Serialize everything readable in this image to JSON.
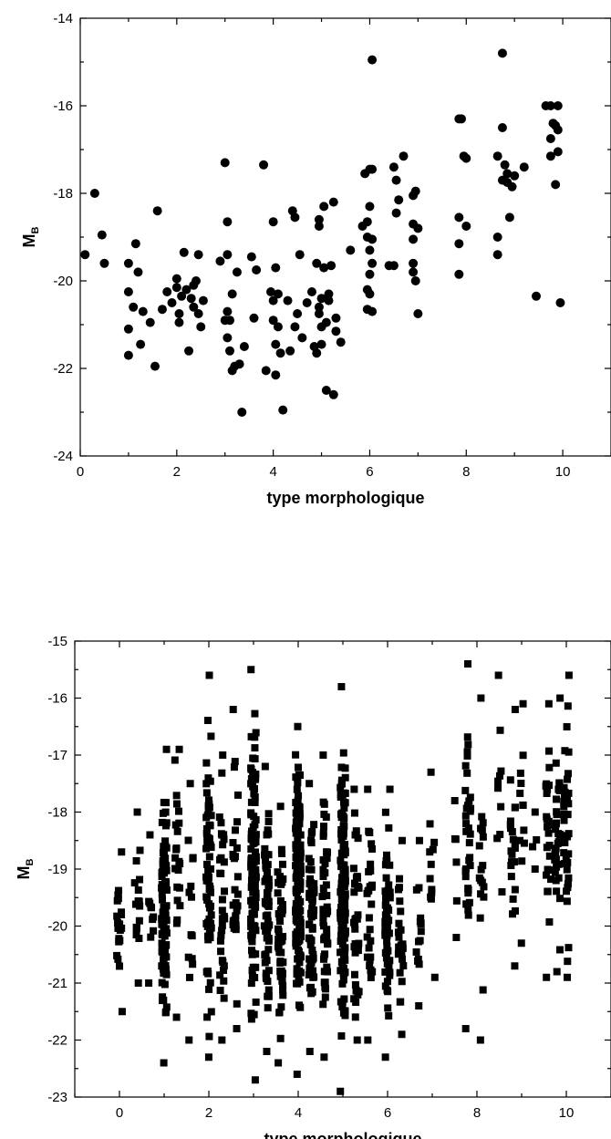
{
  "chart_data": [
    {
      "type": "scatter",
      "marker": "circle",
      "color": "#000000",
      "xlabel": "type morphologique",
      "ylabel": "M",
      "ylabel_subscript": "B",
      "xlim": [
        0,
        11
      ],
      "ylim": [
        -24,
        -14
      ],
      "xticks": [
        0,
        2,
        4,
        6,
        8,
        10
      ],
      "yticks": [
        -24,
        -22,
        -20,
        -18,
        -16,
        -14
      ],
      "grid": false,
      "points": [
        [
          0.1,
          -19.4
        ],
        [
          0.3,
          -18.0
        ],
        [
          0.45,
          -18.95
        ],
        [
          0.5,
          -19.6
        ],
        [
          1.0,
          -19.6
        ],
        [
          1.0,
          -20.25
        ],
        [
          1.0,
          -21.1
        ],
        [
          1.0,
          -21.7
        ],
        [
          1.1,
          -20.6
        ],
        [
          1.15,
          -19.15
        ],
        [
          1.2,
          -19.8
        ],
        [
          1.25,
          -21.45
        ],
        [
          1.3,
          -20.7
        ],
        [
          1.45,
          -20.95
        ],
        [
          1.55,
          -21.95
        ],
        [
          1.6,
          -18.4
        ],
        [
          1.7,
          -20.65
        ],
        [
          1.8,
          -20.25
        ],
        [
          1.9,
          -20.5
        ],
        [
          2.0,
          -19.95
        ],
        [
          2.0,
          -20.15
        ],
        [
          2.05,
          -20.75
        ],
        [
          2.05,
          -20.95
        ],
        [
          2.1,
          -20.35
        ],
        [
          2.15,
          -19.35
        ],
        [
          2.2,
          -20.2
        ],
        [
          2.25,
          -21.6
        ],
        [
          2.3,
          -20.4
        ],
        [
          2.35,
          -20.1
        ],
        [
          2.35,
          -20.6
        ],
        [
          2.4,
          -20.0
        ],
        [
          2.45,
          -19.4
        ],
        [
          2.45,
          -20.75
        ],
        [
          2.5,
          -21.05
        ],
        [
          2.55,
          -20.45
        ],
        [
          2.9,
          -19.55
        ],
        [
          3.0,
          -17.3
        ],
        [
          3.0,
          -20.9
        ],
        [
          3.05,
          -18.65
        ],
        [
          3.05,
          -19.4
        ],
        [
          3.05,
          -20.7
        ],
        [
          3.05,
          -21.3
        ],
        [
          3.1,
          -20.9
        ],
        [
          3.1,
          -21.6
        ],
        [
          3.15,
          -20.3
        ],
        [
          3.15,
          -22.05
        ],
        [
          3.2,
          -21.95
        ],
        [
          3.25,
          -19.8
        ],
        [
          3.3,
          -21.9
        ],
        [
          3.35,
          -23.0
        ],
        [
          3.4,
          -21.5
        ],
        [
          3.55,
          -19.45
        ],
        [
          3.6,
          -20.85
        ],
        [
          3.65,
          -19.75
        ],
        [
          3.8,
          -17.35
        ],
        [
          3.85,
          -22.05
        ],
        [
          3.95,
          -20.25
        ],
        [
          4.0,
          -18.65
        ],
        [
          4.0,
          -20.45
        ],
        [
          4.0,
          -20.9
        ],
        [
          4.05,
          -19.7
        ],
        [
          4.05,
          -21.45
        ],
        [
          4.05,
          -22.15
        ],
        [
          4.1,
          -20.3
        ],
        [
          4.1,
          -21.05
        ],
        [
          4.15,
          -21.65
        ],
        [
          4.2,
          -22.95
        ],
        [
          4.3,
          -20.45
        ],
        [
          4.35,
          -21.6
        ],
        [
          4.4,
          -18.4
        ],
        [
          4.45,
          -18.55
        ],
        [
          4.45,
          -21.05
        ],
        [
          4.5,
          -20.75
        ],
        [
          4.55,
          -19.4
        ],
        [
          4.6,
          -21.3
        ],
        [
          4.7,
          -20.5
        ],
        [
          4.8,
          -20.25
        ],
        [
          4.85,
          -21.5
        ],
        [
          4.9,
          -19.6
        ],
        [
          4.9,
          -21.65
        ],
        [
          4.95,
          -18.6
        ],
        [
          4.95,
          -18.75
        ],
        [
          4.95,
          -20.6
        ],
        [
          4.95,
          -20.75
        ],
        [
          5.0,
          -21.45
        ],
        [
          5.0,
          -21.05
        ],
        [
          5.0,
          -20.4
        ],
        [
          5.05,
          -18.3
        ],
        [
          5.05,
          -19.7
        ],
        [
          5.1,
          -22.5
        ],
        [
          5.1,
          -20.95
        ],
        [
          5.15,
          -20.45
        ],
        [
          5.15,
          -20.3
        ],
        [
          5.2,
          -19.65
        ],
        [
          5.25,
          -22.6
        ],
        [
          5.25,
          -18.2
        ],
        [
          5.3,
          -21.15
        ],
        [
          5.3,
          -20.85
        ],
        [
          5.4,
          -21.4
        ],
        [
          5.6,
          -19.3
        ],
        [
          5.85,
          -18.75
        ],
        [
          5.9,
          -17.55
        ],
        [
          5.95,
          -18.65
        ],
        [
          5.95,
          -19.0
        ],
        [
          5.95,
          -20.2
        ],
        [
          5.95,
          -20.65
        ],
        [
          6.0,
          -17.45
        ],
        [
          6.0,
          -18.3
        ],
        [
          6.0,
          -19.3
        ],
        [
          6.0,
          -19.85
        ],
        [
          6.0,
          -20.3
        ],
        [
          6.05,
          -14.95
        ],
        [
          6.05,
          -17.45
        ],
        [
          6.05,
          -19.05
        ],
        [
          6.05,
          -19.6
        ],
        [
          6.05,
          -20.7
        ],
        [
          6.4,
          -19.65
        ],
        [
          6.5,
          -19.65
        ],
        [
          6.5,
          -17.4
        ],
        [
          6.55,
          -17.7
        ],
        [
          6.55,
          -18.45
        ],
        [
          6.6,
          -18.15
        ],
        [
          6.7,
          -17.15
        ],
        [
          6.9,
          -18.05
        ],
        [
          6.9,
          -18.7
        ],
        [
          6.9,
          -19.05
        ],
        [
          6.9,
          -19.6
        ],
        [
          6.9,
          -19.8
        ],
        [
          6.95,
          -17.95
        ],
        [
          6.95,
          -20.0
        ],
        [
          7.0,
          -20.75
        ],
        [
          7.0,
          -18.8
        ],
        [
          7.85,
          -16.3
        ],
        [
          7.85,
          -18.55
        ],
        [
          7.85,
          -19.15
        ],
        [
          7.85,
          -19.85
        ],
        [
          7.9,
          -16.3
        ],
        [
          7.95,
          -17.15
        ],
        [
          8.0,
          -17.2
        ],
        [
          8.0,
          -18.75
        ],
        [
          8.65,
          -17.15
        ],
        [
          8.65,
          -19.0
        ],
        [
          8.65,
          -19.4
        ],
        [
          8.75,
          -14.8
        ],
        [
          8.75,
          -16.5
        ],
        [
          8.75,
          -17.7
        ],
        [
          8.8,
          -17.35
        ],
        [
          8.85,
          -17.55
        ],
        [
          8.85,
          -17.75
        ],
        [
          8.9,
          -18.55
        ],
        [
          8.95,
          -17.85
        ],
        [
          9.0,
          -17.6
        ],
        [
          9.2,
          -17.4
        ],
        [
          9.45,
          -20.35
        ],
        [
          9.65,
          -16.0
        ],
        [
          9.75,
          -16.0
        ],
        [
          9.75,
          -16.75
        ],
        [
          9.75,
          -17.15
        ],
        [
          9.8,
          -16.4
        ],
        [
          9.85,
          -16.45
        ],
        [
          9.9,
          -16.0
        ],
        [
          9.9,
          -16.55
        ],
        [
          9.9,
          -17.05
        ],
        [
          9.85,
          -17.8
        ],
        [
          9.95,
          -20.5
        ]
      ]
    },
    {
      "type": "scatter",
      "marker": "square",
      "color": "#000000",
      "xlabel": "type morphologique",
      "ylabel": "M",
      "ylabel_subscript": "B",
      "xlim": [
        -1,
        11
      ],
      "ylim": [
        -23,
        -15
      ],
      "xticks": [
        0,
        2,
        4,
        6,
        8,
        10
      ],
      "yticks": [
        -23,
        -22,
        -21,
        -20,
        -19,
        -18,
        -17,
        -16,
        -15
      ],
      "grid": false,
      "columns": [
        {
          "x": 0.0,
          "min": -21.5,
          "max": -18.7,
          "n": 22
        },
        {
          "x": 0.4,
          "min": -21.0,
          "max": -18.0,
          "n": 18
        },
        {
          "x": 0.7,
          "min": -21.0,
          "max": -18.4,
          "n": 10
        },
        {
          "x": 1.0,
          "min": -22.4,
          "max": -16.9,
          "n": 95
        },
        {
          "x": 1.3,
          "min": -21.6,
          "max": -16.9,
          "n": 22
        },
        {
          "x": 1.6,
          "min": -22.0,
          "max": -17.5,
          "n": 14
        },
        {
          "x": 2.0,
          "min": -22.3,
          "max": -15.6,
          "n": 75
        },
        {
          "x": 2.3,
          "min": -22.0,
          "max": -17.0,
          "n": 35
        },
        {
          "x": 2.6,
          "min": -21.8,
          "max": -16.2,
          "n": 30
        },
        {
          "x": 3.0,
          "min": -22.7,
          "max": -15.5,
          "n": 120
        },
        {
          "x": 3.3,
          "min": -22.2,
          "max": -17.2,
          "n": 60
        },
        {
          "x": 3.6,
          "min": -22.4,
          "max": -17.9,
          "n": 55
        },
        {
          "x": 4.0,
          "min": -22.6,
          "max": -16.5,
          "n": 150
        },
        {
          "x": 4.3,
          "min": -22.2,
          "max": -17.5,
          "n": 60
        },
        {
          "x": 4.6,
          "min": -22.3,
          "max": -17.0,
          "n": 50
        },
        {
          "x": 5.0,
          "min": -22.9,
          "max": -15.8,
          "n": 130
        },
        {
          "x": 5.3,
          "min": -22.0,
          "max": -17.6,
          "n": 40
        },
        {
          "x": 5.6,
          "min": -22.0,
          "max": -17.6,
          "n": 30
        },
        {
          "x": 6.0,
          "min": -22.3,
          "max": -17.6,
          "n": 55
        },
        {
          "x": 6.3,
          "min": -21.9,
          "max": -18.5,
          "n": 25
        },
        {
          "x": 6.7,
          "min": -21.4,
          "max": -18.5,
          "n": 15
        },
        {
          "x": 7.0,
          "min": -20.9,
          "max": -17.3,
          "n": 12
        },
        {
          "x": 7.5,
          "min": -20.2,
          "max": -17.8,
          "n": 6
        },
        {
          "x": 7.8,
          "min": -21.8,
          "max": -15.4,
          "n": 35
        },
        {
          "x": 8.1,
          "min": -22.0,
          "max": -16.0,
          "n": 18
        },
        {
          "x": 8.5,
          "min": -19.4,
          "max": -15.6,
          "n": 10
        },
        {
          "x": 8.8,
          "min": -20.7,
          "max": -16.2,
          "n": 22
        },
        {
          "x": 9.0,
          "min": -20.3,
          "max": -16.1,
          "n": 12
        },
        {
          "x": 9.3,
          "min": -19.0,
          "max": -18.0,
          "n": 4
        },
        {
          "x": 9.6,
          "min": -20.9,
          "max": -16.1,
          "n": 25
        },
        {
          "x": 9.8,
          "min": -20.8,
          "max": -16.0,
          "n": 30
        },
        {
          "x": 10.0,
          "min": -20.9,
          "max": -15.6,
          "n": 40
        }
      ]
    }
  ]
}
